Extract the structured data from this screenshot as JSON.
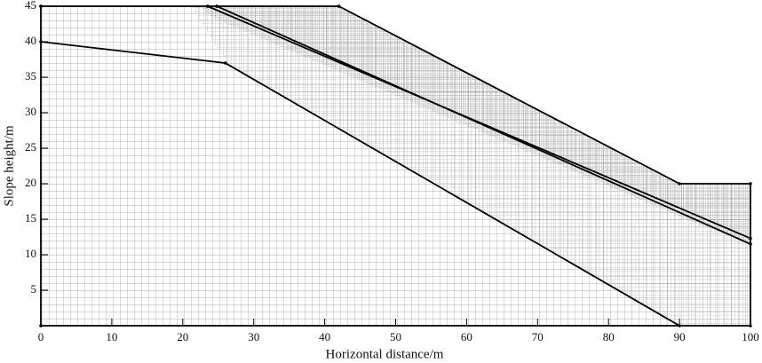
{
  "chart_data": {
    "type": "line",
    "xlabel": "Horizontal distance/m",
    "ylabel": "Slope height/m",
    "xlim": [
      0,
      100
    ],
    "ylim": [
      0,
      45
    ],
    "xticks": [
      0,
      10,
      20,
      30,
      40,
      50,
      60,
      70,
      80,
      90,
      100
    ],
    "yticks": [
      5,
      10,
      15,
      20,
      25,
      30,
      35,
      40,
      45
    ],
    "series": [
      {
        "color": "#000000",
        "x": [
          0,
          42,
          90,
          100,
          100,
          0,
          0
        ],
        "values": [
          45,
          45,
          20,
          20,
          0,
          0,
          45
        ]
      },
      {
        "color": "#000000",
        "x": [
          0,
          26,
          90
        ],
        "values": [
          40,
          37,
          0
        ]
      },
      {
        "color": "#000000",
        "x": [
          23.5,
          100
        ],
        "values": [
          45,
          12.3
        ]
      },
      {
        "color": "#000000",
        "x": [
          24.8,
          100
        ],
        "values": [
          45,
          11.5
        ]
      }
    ]
  }
}
